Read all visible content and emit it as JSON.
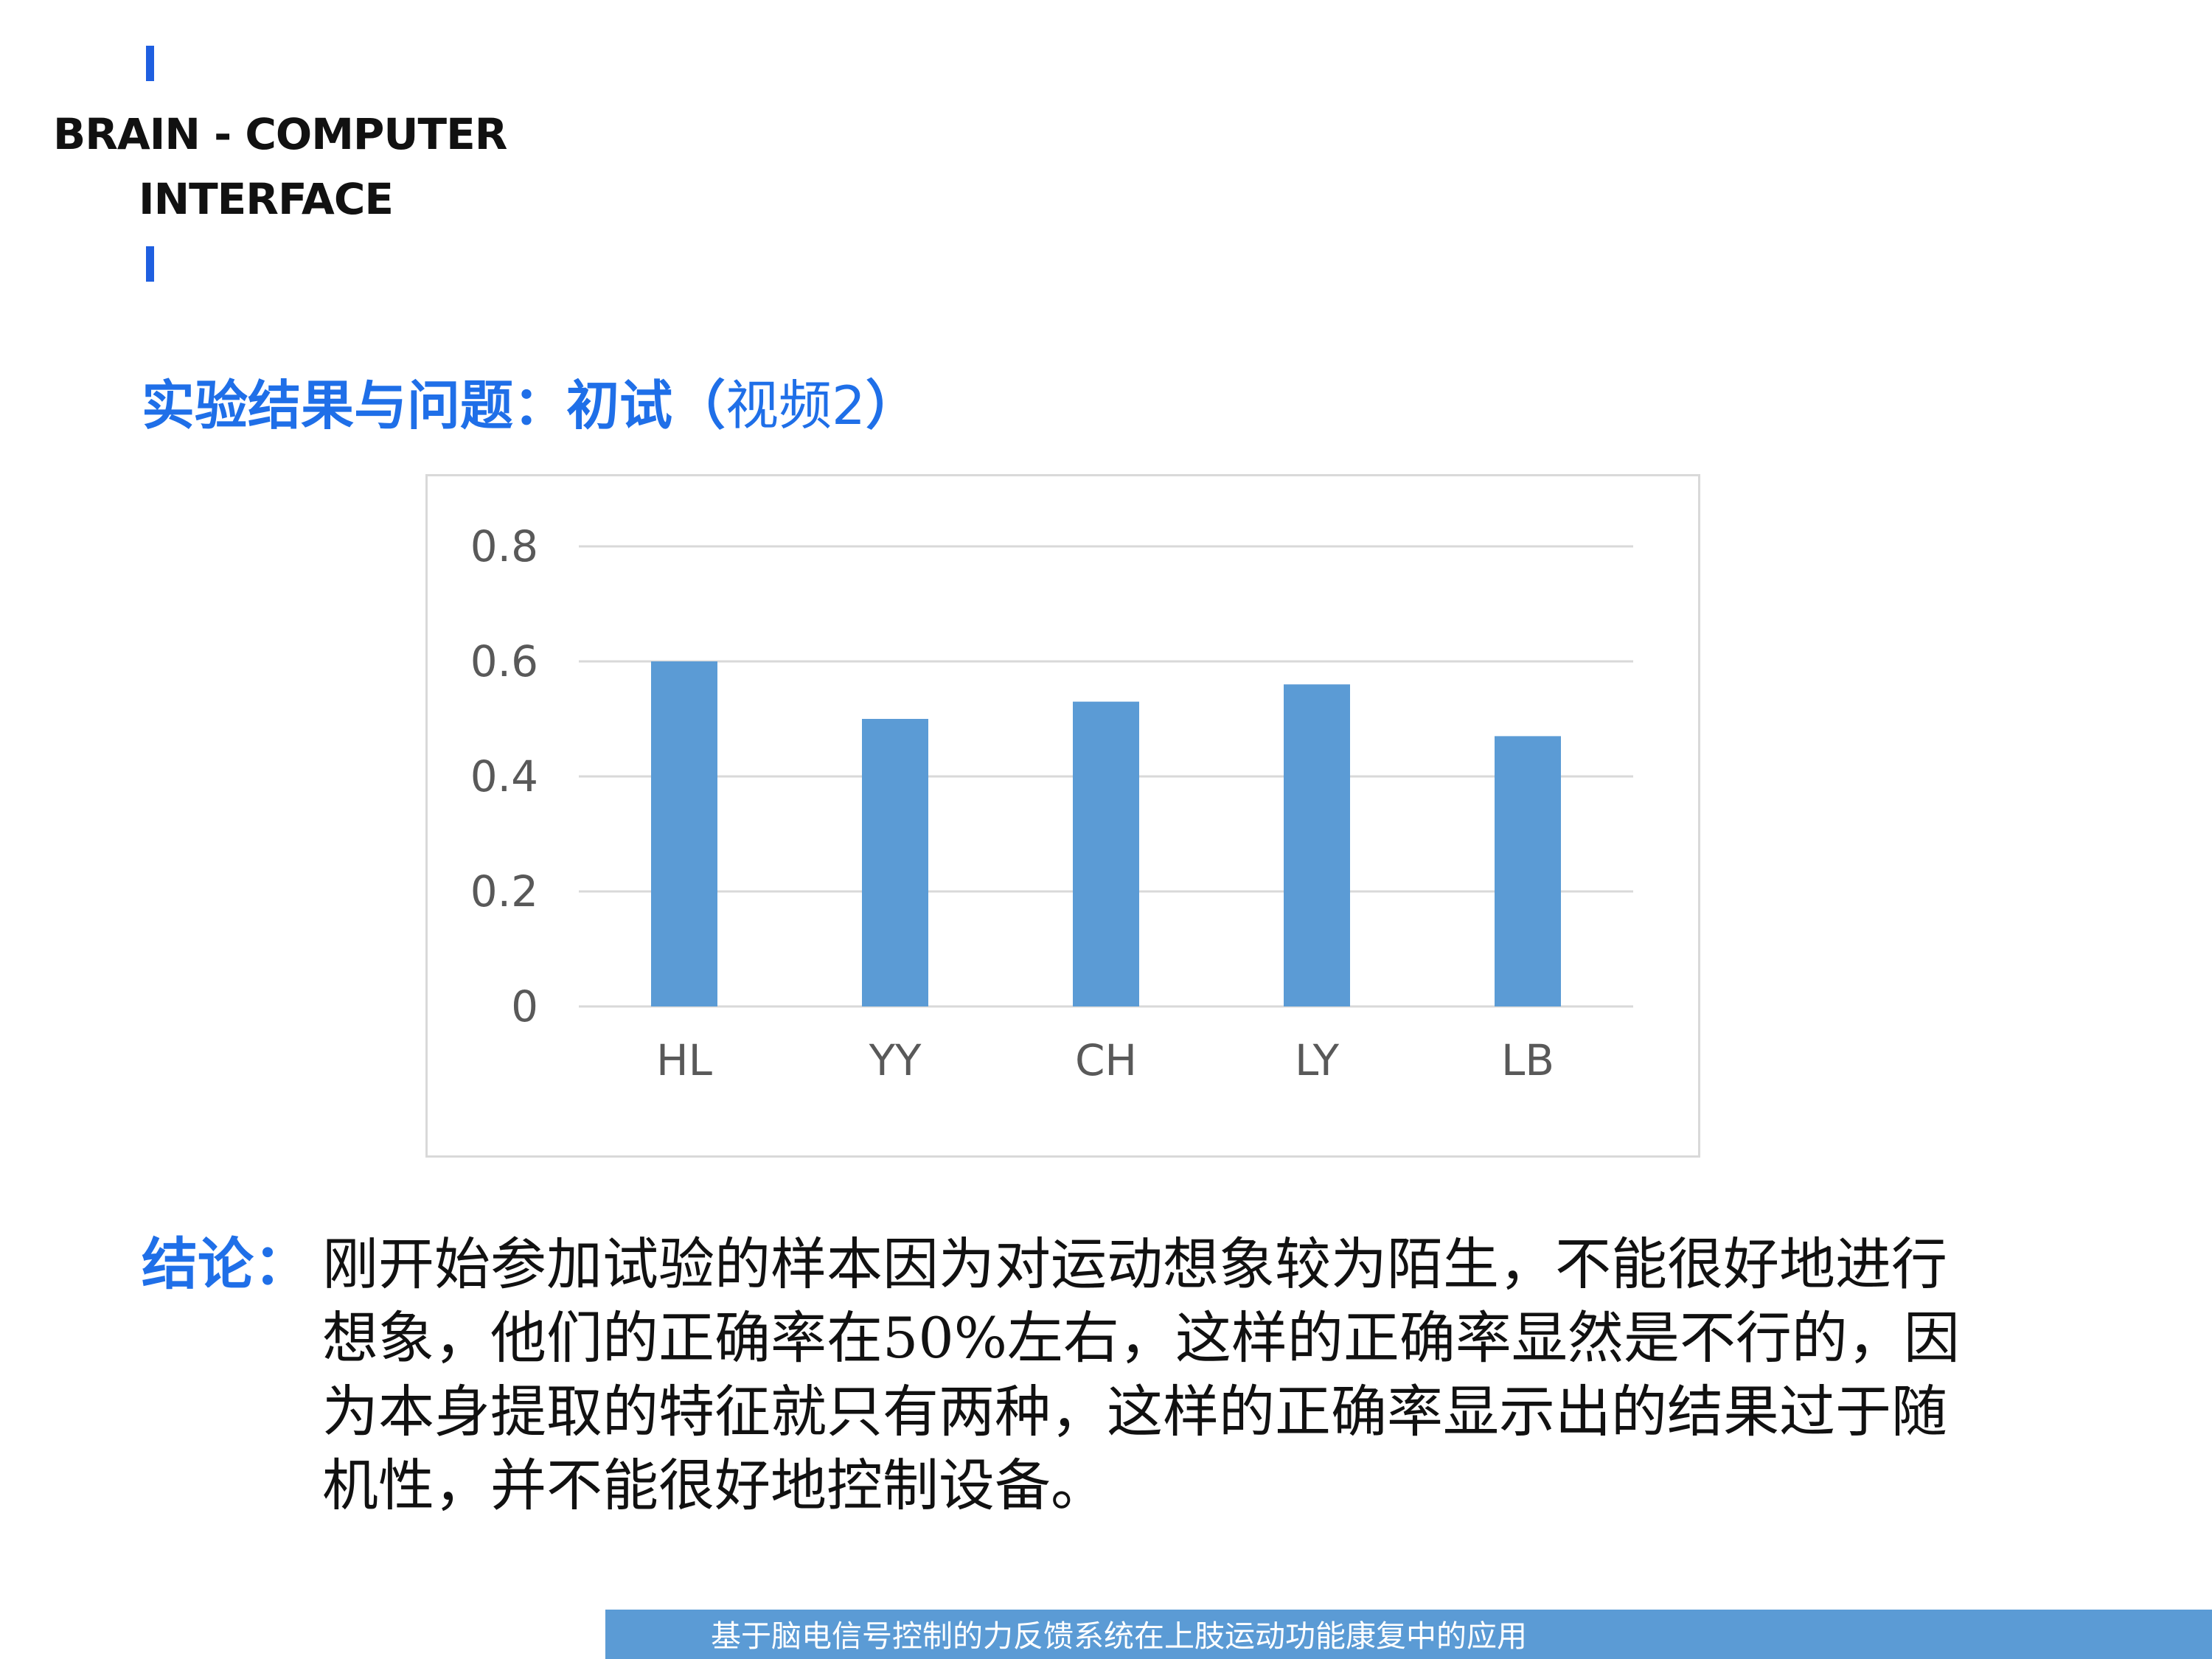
{
  "brand": {
    "line1": "BRAIN - COMPUTER",
    "line2": "INTERFACE"
  },
  "heading": {
    "bold": "实验结果与问题：初试（",
    "paren": "视频2",
    "close": "）"
  },
  "chart_data": {
    "type": "bar",
    "categories": [
      "HL",
      "YY",
      "CH",
      "LY",
      "LB"
    ],
    "values": [
      0.6,
      0.5,
      0.53,
      0.56,
      0.47
    ],
    "ylim": [
      0,
      0.8
    ],
    "yticks": [
      "0",
      "0.2",
      "0.4",
      "0.6",
      "0.8"
    ],
    "grid": true,
    "bar_color": "#5b9bd5"
  },
  "conclusion": {
    "label": "结论：",
    "lines": [
      "刚开始参加试验的样本因为对运动想象较为陌生，不能很好地进行",
      "想象，他们的正确率在50%左右，这样的正确率显然是不行的，因",
      "为本身提取的特征就只有两种，这样的正确率显示出的结果过于随",
      "机性，并不能很好地控制设备。"
    ]
  },
  "footer": {
    "text": "基于脑电信号控制的力反馈系统在上肢运动功能康复中的应用"
  },
  "colors": {
    "accent": "#1f6fe8",
    "footer_bg": "#5b9bd5"
  }
}
